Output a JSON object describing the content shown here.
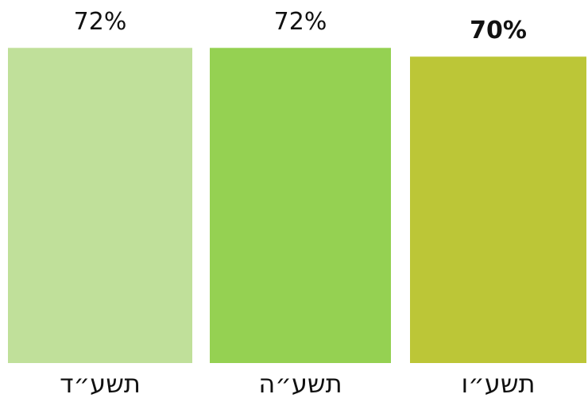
{
  "chart_data": {
    "type": "bar",
    "categories": [
      "תשע״ד",
      "תשע״ה",
      "תשע״ו"
    ],
    "values": [
      72,
      72,
      70
    ],
    "value_labels": [
      "72%",
      "72%",
      "70%"
    ],
    "colors": [
      "#c0e09a",
      "#95d152",
      "#bcc637"
    ]
  }
}
